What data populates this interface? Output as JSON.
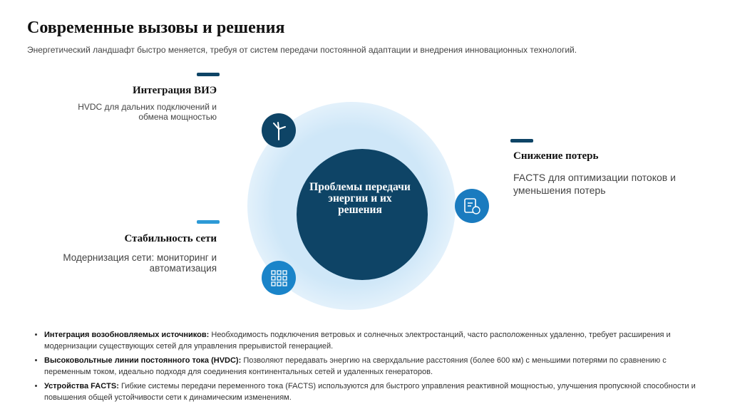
{
  "header": {
    "title": "Современные вызовы и решения",
    "subtitle": "Энергетический ландшафт быстро меняется, требуя от систем передачи постоянной адаптации и внедрения инновационных технологий."
  },
  "center": {
    "label": "Проблемы передачи энергии и их решения"
  },
  "callouts": [
    {
      "title": "Интеграция ВИЭ",
      "text": "HVDC для дальних подключений и обмена мощностью"
    },
    {
      "title": "Снижение потерь",
      "text": "FACTS для оптимизации потоков и уменьшения потерь"
    },
    {
      "title": "Стабильность сети",
      "text": "Модернизация сети: мониторинг и автоматизация"
    }
  ],
  "bullets": [
    {
      "lead": "Интеграция возобновляемых источников:",
      "text": "Необходимость подключения ветровых и солнечных электростанций, часто расположенных удаленно, требует расширения и модернизации существующих сетей для управления прерывистой генерацией."
    },
    {
      "lead": "Высоковольтные линии постоянного тока (HVDC):",
      "text": "Позволяют передавать энергию на сверхдальние расстояния (более 600 км) с меньшими потерями по сравнению с переменным током, идеально подходя для соединения континентальных сетей и удаленных генераторов."
    },
    {
      "lead": "Устройства FACTS:",
      "text": "Гибкие системы передачи переменного тока (FACTS) используются для быстрого управления реактивной мощностью, улучшения пропускной способности и повышения общей устойчивости сети к динамическим изменениям."
    }
  ]
}
